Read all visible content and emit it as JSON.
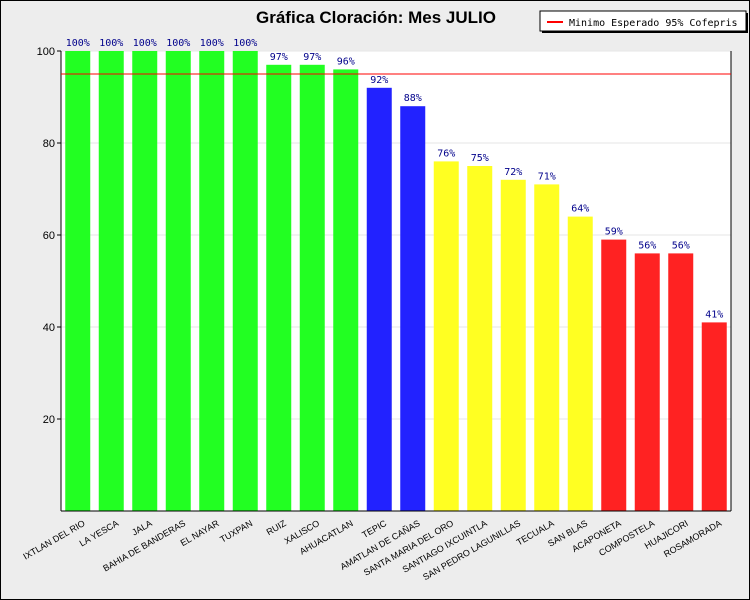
{
  "chart_data": {
    "type": "bar",
    "title": "Gráfica Cloración: Mes JULIO",
    "xlabel": "",
    "ylabel": "",
    "ylim": [
      0,
      100
    ],
    "yticks": [
      20,
      40,
      60,
      80,
      100
    ],
    "grid": true,
    "legend": {
      "placement": "top-right",
      "entries": [
        {
          "label": "Minimo Esperado 95% Cofepris",
          "color": "#ff0000"
        }
      ]
    },
    "reference_line": {
      "value": 95,
      "color": "#ff0000"
    },
    "categories": [
      "IXTLAN DEL RIO",
      "LA YESCA",
      "JALA",
      "BAHIA DE BANDERAS",
      "EL NAYAR",
      "TUXPAN",
      "RUIZ",
      "XALISCO",
      "AHUACATLAN",
      "TEPIC",
      "AMATLAN DE CAÑAS",
      "SANTA MARIA DEL ORO",
      "SANTIAGO IXCUINTLA",
      "SAN PEDRO LAGUNILLAS",
      "TECUALA",
      "SAN BLAS",
      "ACAPONETA",
      "COMPOSTELA",
      "HUAJICORI",
      "ROSAMORADA"
    ],
    "values": [
      100,
      100,
      100,
      100,
      100,
      100,
      97,
      97,
      96,
      92,
      88,
      76,
      75,
      72,
      71,
      64,
      59,
      56,
      56,
      41
    ],
    "data_labels": [
      "100%",
      "100%",
      "100%",
      "100%",
      "100%",
      "100%",
      "97%",
      "97%",
      "96%",
      "92%",
      "88%",
      "76%",
      "75%",
      "72%",
      "71%",
      "64%",
      "59%",
      "56%",
      "56%",
      "41%"
    ],
    "colors": [
      "#22ff22",
      "#22ff22",
      "#22ff22",
      "#22ff22",
      "#22ff22",
      "#22ff22",
      "#22ff22",
      "#22ff22",
      "#22ff22",
      "#2222ff",
      "#2222ff",
      "#ffff22",
      "#ffff22",
      "#ffff22",
      "#ffff22",
      "#ffff22",
      "#ff2222",
      "#ff2222",
      "#ff2222",
      "#ff2222"
    ],
    "label_color": "#00008b"
  }
}
